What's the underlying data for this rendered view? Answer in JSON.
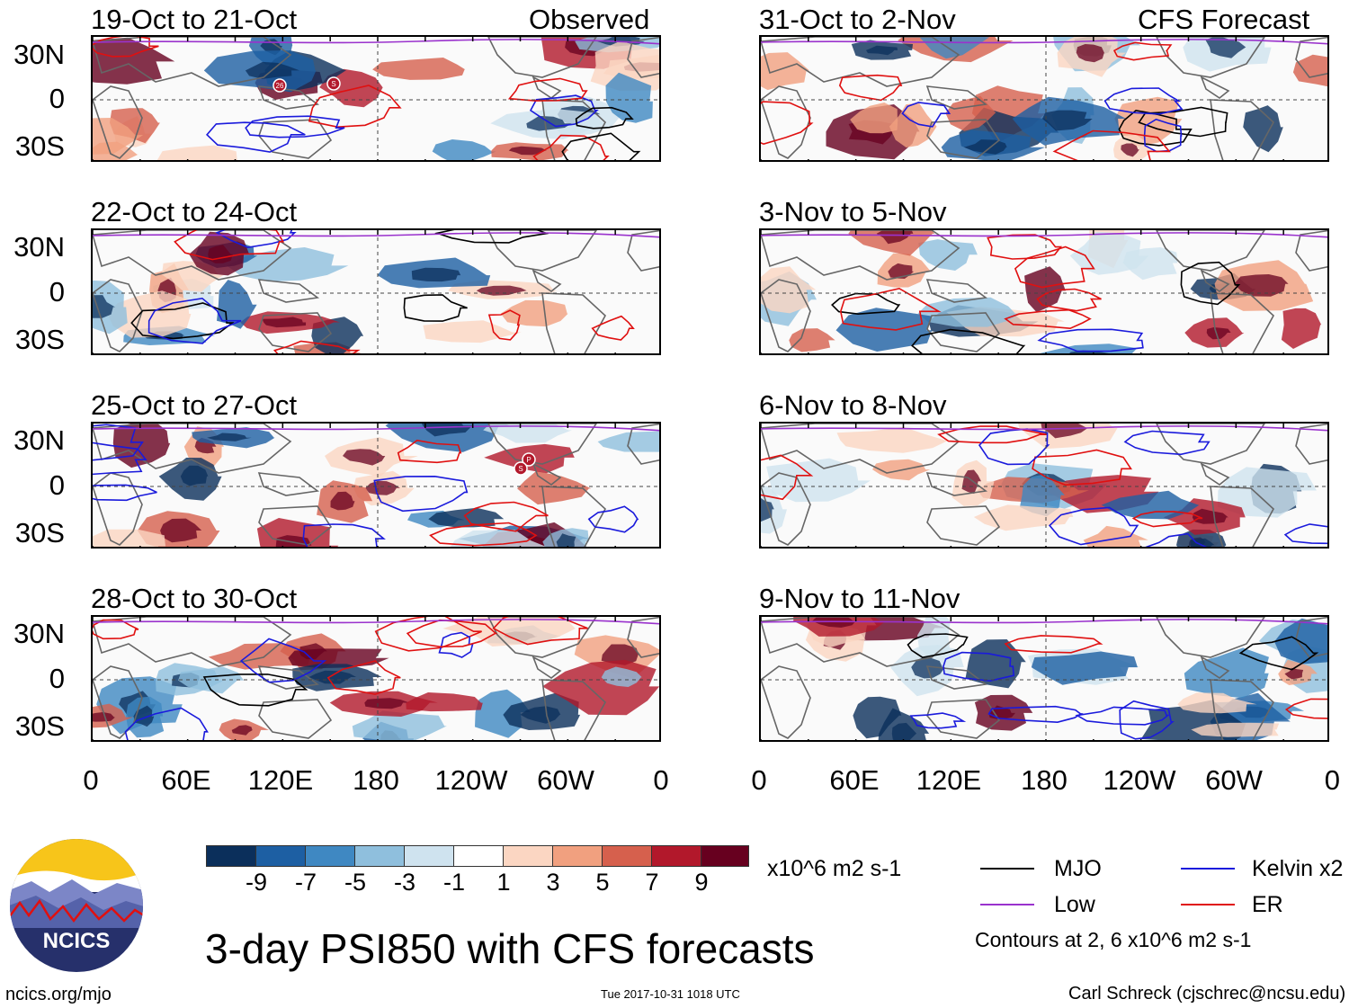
{
  "figure": {
    "title": "3-day PSI850 with CFS forecasts",
    "website": "ncics.org/mjo",
    "timestamp": "Tue 2017-10-31 1018 UTC",
    "author": "Carl Schreck (cjschrec@ncsu.edu)",
    "logo_text": "NCICS"
  },
  "column_tags": {
    "left": "Observed",
    "right": "CFS Forecast"
  },
  "panels": {
    "left": [
      "19-Oct to 21-Oct",
      "22-Oct to 24-Oct",
      "25-Oct to 27-Oct",
      "28-Oct to 30-Oct"
    ],
    "right": [
      "31-Oct to 2-Nov",
      "3-Nov to 5-Nov",
      "6-Nov to 8-Nov",
      "9-Nov to 11-Nov"
    ]
  },
  "axes": {
    "y_ticks": [
      "30N",
      "0",
      "30S"
    ],
    "x_ticks": [
      "0",
      "60E",
      "120E",
      "180",
      "120W",
      "60W",
      "0"
    ]
  },
  "colorbar": {
    "labels": [
      "-9",
      "-7",
      "-5",
      "-3",
      "-1",
      "1",
      "3",
      "5",
      "7",
      "9"
    ],
    "units": "x10^6 m2 s-1",
    "colors": [
      "#0b2f5b",
      "#1d5fa3",
      "#3f88c2",
      "#8fbfdd",
      "#cfe3ef",
      "#ffffff",
      "#fbd6c2",
      "#f1a07f",
      "#d6604d",
      "#b2182b",
      "#67001f"
    ]
  },
  "legend": {
    "items": [
      {
        "label": "MJO",
        "color": "#000000"
      },
      {
        "label": "Kelvin x2",
        "color": "#1a1adc"
      },
      {
        "label": "Low",
        "color": "#9a32cd"
      },
      {
        "label": "ER",
        "color": "#e01010"
      }
    ],
    "note": "Contours at 2, 6 x10^6 m2 s-1"
  },
  "storm_markers": {
    "panel_1": [
      "26",
      "S"
    ],
    "panel_3": [
      "P",
      "S"
    ]
  }
}
